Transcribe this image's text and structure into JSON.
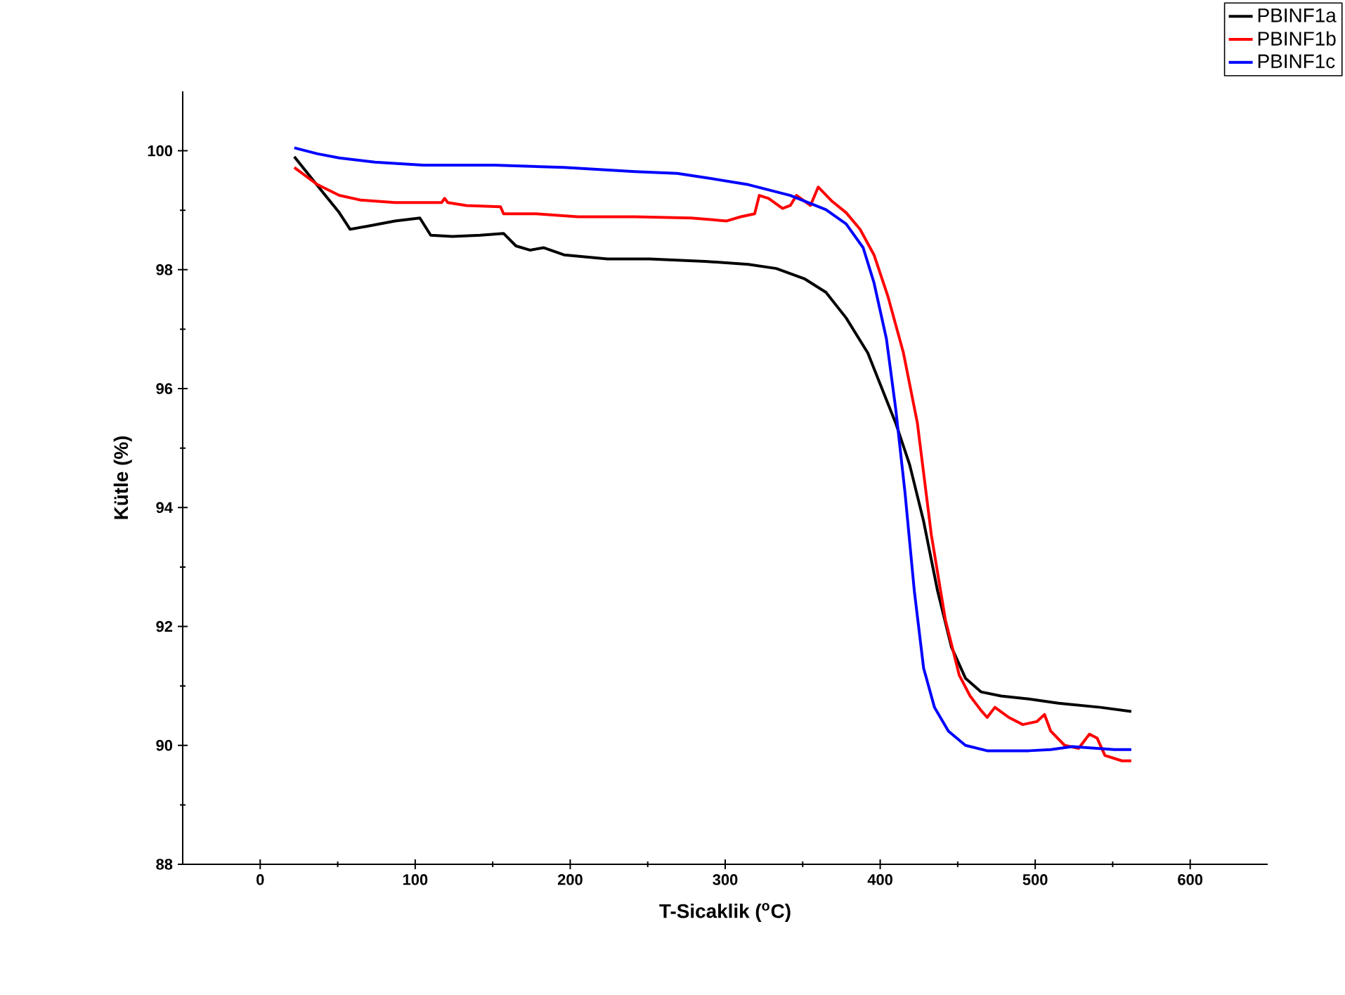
{
  "chart_data": {
    "type": "line",
    "xlabel": "T-Sicaklik ($^{o}$C)",
    "ylabel": "Kütle (%)",
    "xlim": [
      -50,
      650
    ],
    "ylim": [
      88,
      101
    ],
    "xticks": [
      0,
      100,
      200,
      300,
      400,
      500,
      600
    ],
    "yticks": [
      88,
      90,
      92,
      94,
      96,
      98,
      100
    ],
    "legend": "top right",
    "grid": false,
    "marker": "none",
    "line_style": "solid",
    "series": [
      {
        "name": "PBINF1a",
        "color": "#000000",
        "x": [
          22,
          42,
          51,
          58,
          69,
          87,
          103,
          110,
          124,
          142,
          157,
          165,
          174,
          183,
          196,
          224,
          251,
          287,
          315,
          333,
          351,
          365,
          378,
          392,
          401,
          410,
          419,
          428,
          437,
          446,
          455,
          465,
          478,
          496,
          515,
          542,
          562
        ],
        "values": [
          99.9,
          99.25,
          98.96,
          98.68,
          98.73,
          98.82,
          98.87,
          98.58,
          98.56,
          98.58,
          98.61,
          98.4,
          98.33,
          98.37,
          98.25,
          98.18,
          98.18,
          98.14,
          98.09,
          98.02,
          97.85,
          97.62,
          97.19,
          96.6,
          96.01,
          95.42,
          94.72,
          93.77,
          92.6,
          91.65,
          91.13,
          90.9,
          90.83,
          90.78,
          90.71,
          90.64,
          90.57
        ]
      },
      {
        "name": "PBINF1b",
        "color": "#ff0000",
        "x": [
          22,
          37,
          51,
          65,
          87,
          117,
          119,
          121,
          133,
          155,
          157,
          178,
          205,
          242,
          278,
          301,
          310,
          319,
          322,
          328,
          337,
          342,
          346,
          355,
          360,
          369,
          378,
          387,
          396,
          405,
          415,
          424,
          433,
          442,
          451,
          458,
          465,
          469,
          474,
          483,
          492,
          501,
          506,
          510,
          519,
          528,
          535,
          540,
          545,
          556,
          562
        ],
        "values": [
          99.72,
          99.43,
          99.25,
          99.17,
          99.13,
          99.13,
          99.2,
          99.13,
          99.08,
          99.06,
          98.94,
          98.94,
          98.89,
          98.89,
          98.87,
          98.82,
          98.89,
          98.94,
          99.25,
          99.2,
          99.03,
          99.08,
          99.25,
          99.08,
          99.39,
          99.15,
          98.96,
          98.68,
          98.25,
          97.55,
          96.6,
          95.42,
          93.54,
          92.12,
          91.18,
          90.83,
          90.59,
          90.47,
          90.64,
          90.47,
          90.35,
          90.4,
          90.52,
          90.24,
          90.0,
          89.95,
          90.19,
          90.12,
          89.83,
          89.74,
          89.74
        ]
      },
      {
        "name": "PBINF1c",
        "color": "#0000ff",
        "x": [
          22,
          37,
          51,
          74,
          105,
          151,
          196,
          242,
          269,
          287,
          315,
          342,
          365,
          378,
          389,
          396,
          404,
          410,
          416,
          422,
          428,
          435,
          444,
          455,
          469,
          496,
          510,
          524,
          551,
          562
        ],
        "values": [
          100.05,
          99.95,
          99.88,
          99.81,
          99.76,
          99.76,
          99.72,
          99.65,
          99.62,
          99.55,
          99.43,
          99.25,
          99.01,
          98.77,
          98.37,
          97.78,
          96.84,
          95.66,
          94.25,
          92.6,
          91.3,
          90.64,
          90.24,
          90.0,
          89.91,
          89.91,
          89.93,
          89.98,
          89.93,
          89.93
        ]
      }
    ]
  }
}
